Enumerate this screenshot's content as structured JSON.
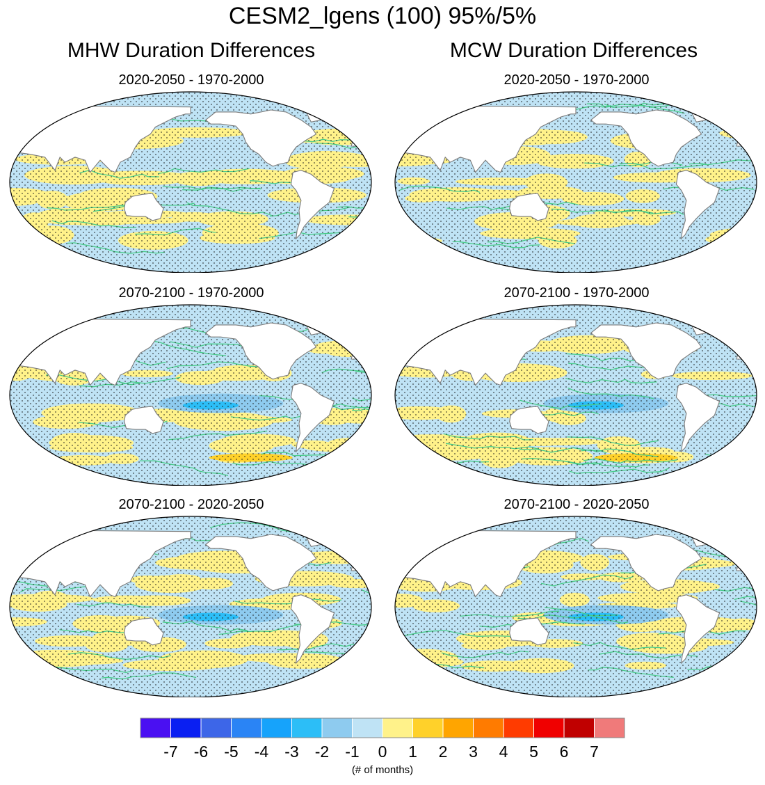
{
  "title": "CESM2_lgens (100) 95%/5%",
  "columns": [
    {
      "title": "MHW Duration Differences"
    },
    {
      "title": "MCW Duration Differences"
    }
  ],
  "rows": [
    {
      "period": "2020-2050 - 1970-2000"
    },
    {
      "period": "2070-2100 - 1970-2000"
    },
    {
      "period": "2070-2100 - 2020-2050"
    }
  ],
  "colorbar": {
    "labels": [
      "-7",
      "-6",
      "-5",
      "-4",
      "-3",
      "-2",
      "-1",
      "0",
      "1",
      "2",
      "3",
      "4",
      "5",
      "6",
      "7"
    ],
    "colors": [
      "#4a10f2",
      "#0a1ff2",
      "#3d66e8",
      "#2a84f5",
      "#16a3fb",
      "#2cbef7",
      "#8ecbef",
      "#bfe3f5",
      "#fff28a",
      "#ffd12a",
      "#ffa500",
      "#ff7b00",
      "#ff3b00",
      "#f00000",
      "#c00000",
      "#f07a7a"
    ],
    "units": "(# of months)"
  },
  "palette": {
    "ocean_neg": "#bfe3f5",
    "ocean_pos": "#fff28a",
    "contour": "#47cc8a",
    "land": "#ffffff",
    "coast": "#7a7a7a"
  }
}
